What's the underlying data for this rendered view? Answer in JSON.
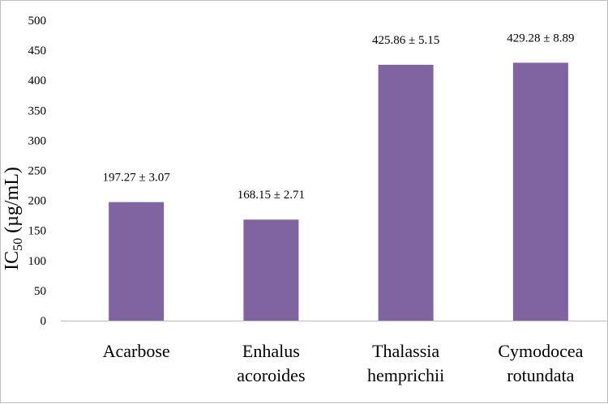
{
  "chart_data": {
    "type": "bar",
    "categories": [
      [
        "Acarbose"
      ],
      [
        "Enhalus",
        "acoroides"
      ],
      [
        "Thalassia",
        "hemprichii"
      ],
      [
        "Cymodocea",
        "rotundata"
      ]
    ],
    "values": [
      197.27,
      168.15,
      425.86,
      429.28
    ],
    "errors": [
      3.07,
      2.71,
      5.15,
      8.89
    ],
    "data_labels": [
      "197.27 ± 3.07",
      "168.15 ± 2.71",
      "425.86 ± 5.15",
      "429.28 ± 8.89"
    ],
    "ylabel": {
      "base": "IC",
      "sub": "50",
      "rest": " (µg/mL)"
    },
    "ylim": [
      0,
      500
    ],
    "yticks": [
      0,
      50,
      100,
      150,
      200,
      250,
      300,
      350,
      400,
      450,
      500
    ],
    "grid": false,
    "bar_color": "#8064A2"
  }
}
